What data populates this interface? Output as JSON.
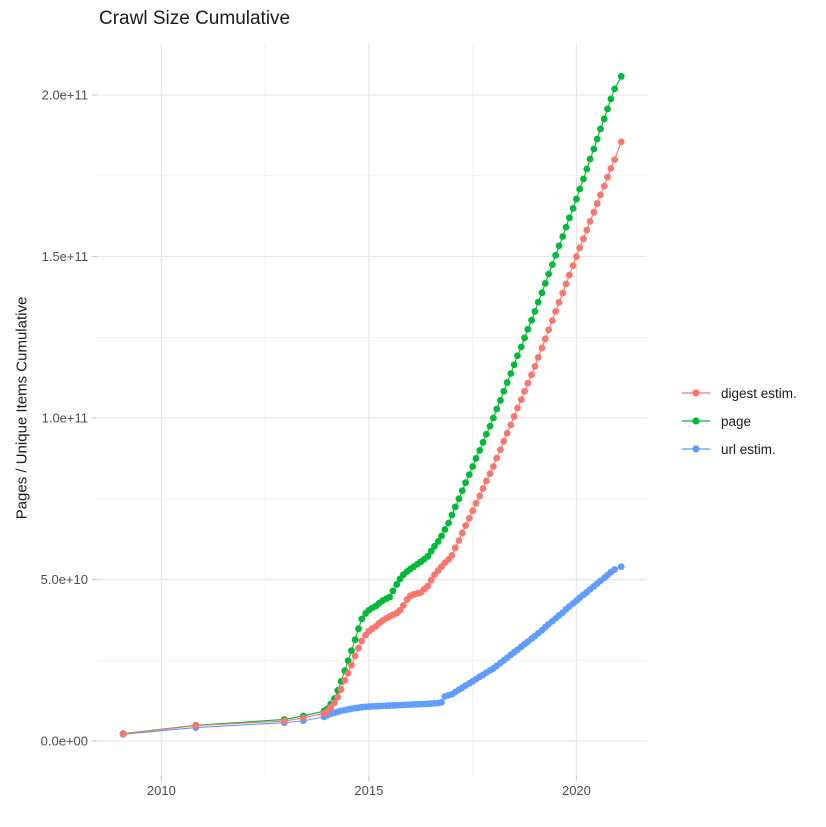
{
  "title": "Crawl Size Cumulative",
  "y_axis_title": "Pages / Unique Items Cumulative",
  "legend": {
    "items": [
      {
        "label": "digest estim.",
        "color": "#F8766D"
      },
      {
        "label": "page",
        "color": "#00BA38"
      },
      {
        "label": "url estim.",
        "color": "#619CFF"
      }
    ]
  },
  "chart_data": {
    "type": "scatter-line",
    "title": "Crawl Size Cumulative",
    "xlabel": "",
    "ylabel": "Pages / Unique Items Cumulative",
    "value_unit": "items, stored as billions (multiply by 1e9)",
    "x_range": [
      2008.45,
      2021.7
    ],
    "y_range": [
      -10.8,
      215.8
    ],
    "x_breaks": [
      2010,
      2015,
      2020
    ],
    "x_tick_labels": [
      "2010",
      "2015",
      "2020"
    ],
    "x_minor_breaks": [
      2012.5,
      2017.5
    ],
    "y_breaks": [
      0,
      50,
      100,
      150,
      200
    ],
    "y_tick_labels": [
      "0.0e+00",
      "5.0e+10",
      "1.0e+11",
      "1.5e+11",
      "2.0e+11"
    ],
    "y_minor_breaks": [
      25,
      75,
      125,
      175
    ],
    "grid": "major+minor",
    "legend_position": "right",
    "render_order": [
      2,
      1,
      0
    ],
    "series": [
      {
        "name": "digest estim.",
        "color": "#F8766D",
        "points": [
          [
            2009.08,
            2.2
          ],
          [
            2010.83,
            4.8
          ],
          [
            2012.96,
            6.2
          ],
          [
            2013.42,
            7.2
          ],
          [
            2013.92,
            8.6
          ],
          [
            2014.0,
            9.2
          ],
          [
            2014.08,
            10.4
          ],
          [
            2014.17,
            11.8
          ],
          [
            2014.25,
            13.6
          ],
          [
            2014.33,
            16.0
          ],
          [
            2014.42,
            18.8
          ],
          [
            2014.5,
            21.0
          ],
          [
            2014.58,
            23.5
          ],
          [
            2014.67,
            26.3
          ],
          [
            2014.75,
            28.8
          ],
          [
            2014.83,
            31.0
          ],
          [
            2014.92,
            32.8
          ],
          [
            2015.0,
            34.0
          ],
          [
            2015.08,
            34.8
          ],
          [
            2015.17,
            35.5
          ],
          [
            2015.25,
            36.5
          ],
          [
            2015.33,
            37.3
          ],
          [
            2015.42,
            38.0
          ],
          [
            2015.5,
            38.6
          ],
          [
            2015.58,
            39.1
          ],
          [
            2015.67,
            39.6
          ],
          [
            2015.75,
            40.5
          ],
          [
            2015.83,
            42.0
          ],
          [
            2015.92,
            43.8
          ],
          [
            2016.0,
            45.0
          ],
          [
            2016.08,
            45.4
          ],
          [
            2016.17,
            45.7
          ],
          [
            2016.25,
            46.0
          ],
          [
            2016.33,
            47.0
          ],
          [
            2016.42,
            48.0
          ],
          [
            2016.5,
            49.8
          ],
          [
            2016.58,
            51.5
          ],
          [
            2016.67,
            52.8
          ],
          [
            2016.75,
            54.0
          ],
          [
            2016.83,
            55.2
          ],
          [
            2016.92,
            56.2
          ],
          [
            2017.0,
            57.5
          ],
          [
            2017.08,
            59.8
          ],
          [
            2017.17,
            62.1
          ],
          [
            2017.25,
            64.4
          ],
          [
            2017.33,
            66.7
          ],
          [
            2017.42,
            69.0
          ],
          [
            2017.5,
            71.3
          ],
          [
            2017.58,
            73.6
          ],
          [
            2017.67,
            75.9
          ],
          [
            2017.75,
            78.2
          ],
          [
            2017.83,
            80.5
          ],
          [
            2017.92,
            82.8
          ],
          [
            2018.0,
            85.0
          ],
          [
            2018.08,
            87.6
          ],
          [
            2018.17,
            90.2
          ],
          [
            2018.25,
            92.8
          ],
          [
            2018.33,
            95.3
          ],
          [
            2018.42,
            97.9
          ],
          [
            2018.5,
            100.5
          ],
          [
            2018.58,
            103.1
          ],
          [
            2018.67,
            105.7
          ],
          [
            2018.75,
            108.3
          ],
          [
            2018.83,
            110.8
          ],
          [
            2018.92,
            113.4
          ],
          [
            2019.0,
            116.0
          ],
          [
            2019.08,
            118.8
          ],
          [
            2019.17,
            121.7
          ],
          [
            2019.25,
            124.5
          ],
          [
            2019.33,
            127.3
          ],
          [
            2019.42,
            130.2
          ],
          [
            2019.5,
            133.0
          ],
          [
            2019.58,
            135.8
          ],
          [
            2019.67,
            138.7
          ],
          [
            2019.75,
            141.5
          ],
          [
            2019.83,
            144.3
          ],
          [
            2019.92,
            147.2
          ],
          [
            2020.0,
            150.0
          ],
          [
            2020.08,
            152.7
          ],
          [
            2020.17,
            155.5
          ],
          [
            2020.25,
            158.2
          ],
          [
            2020.33,
            160.9
          ],
          [
            2020.42,
            163.7
          ],
          [
            2020.5,
            166.4
          ],
          [
            2020.58,
            169.1
          ],
          [
            2020.67,
            171.8
          ],
          [
            2020.75,
            174.6
          ],
          [
            2020.83,
            177.3
          ],
          [
            2020.92,
            180.0
          ],
          [
            2021.08,
            185.5
          ]
        ]
      },
      {
        "name": "page",
        "color": "#00BA38",
        "points": [
          [
            2009.08,
            2.3
          ],
          [
            2010.83,
            4.9
          ],
          [
            2012.96,
            6.7
          ],
          [
            2013.42,
            7.8
          ],
          [
            2013.92,
            9.3
          ],
          [
            2014.0,
            10.0
          ],
          [
            2014.08,
            11.5
          ],
          [
            2014.17,
            13.2
          ],
          [
            2014.25,
            15.7
          ],
          [
            2014.33,
            18.5
          ],
          [
            2014.42,
            21.8
          ],
          [
            2014.5,
            24.9
          ],
          [
            2014.58,
            28.0
          ],
          [
            2014.67,
            31.4
          ],
          [
            2014.75,
            34.8
          ],
          [
            2014.83,
            37.8
          ],
          [
            2014.92,
            39.5
          ],
          [
            2015.0,
            40.5
          ],
          [
            2015.08,
            41.2
          ],
          [
            2015.17,
            41.8
          ],
          [
            2015.25,
            42.7
          ],
          [
            2015.33,
            43.5
          ],
          [
            2015.42,
            44.1
          ],
          [
            2015.5,
            44.6
          ],
          [
            2015.58,
            46.5
          ],
          [
            2015.67,
            48.5
          ],
          [
            2015.75,
            50.2
          ],
          [
            2015.83,
            51.5
          ],
          [
            2015.92,
            52.5
          ],
          [
            2016.0,
            53.3
          ],
          [
            2016.08,
            54.0
          ],
          [
            2016.17,
            54.8
          ],
          [
            2016.25,
            55.5
          ],
          [
            2016.33,
            56.3
          ],
          [
            2016.42,
            57.2
          ],
          [
            2016.5,
            58.8
          ],
          [
            2016.58,
            60.3
          ],
          [
            2016.67,
            61.8
          ],
          [
            2016.75,
            63.5
          ],
          [
            2016.83,
            65.5
          ],
          [
            2016.92,
            67.5
          ],
          [
            2017.0,
            70.0
          ],
          [
            2017.08,
            72.5
          ],
          [
            2017.17,
            75.0
          ],
          [
            2017.25,
            77.5
          ],
          [
            2017.33,
            80.0
          ],
          [
            2017.42,
            82.5
          ],
          [
            2017.5,
            85.0
          ],
          [
            2017.58,
            87.5
          ],
          [
            2017.67,
            90.0
          ],
          [
            2017.75,
            92.5
          ],
          [
            2017.83,
            95.0
          ],
          [
            2017.92,
            97.5
          ],
          [
            2018.0,
            100.0
          ],
          [
            2018.08,
            102.8
          ],
          [
            2018.17,
            105.5
          ],
          [
            2018.25,
            108.3
          ],
          [
            2018.33,
            111.0
          ],
          [
            2018.42,
            113.8
          ],
          [
            2018.5,
            116.5
          ],
          [
            2018.58,
            119.3
          ],
          [
            2018.67,
            122.0
          ],
          [
            2018.75,
            124.8
          ],
          [
            2018.83,
            127.5
          ],
          [
            2018.92,
            130.3
          ],
          [
            2019.0,
            133.0
          ],
          [
            2019.08,
            135.9
          ],
          [
            2019.17,
            138.8
          ],
          [
            2019.25,
            141.7
          ],
          [
            2019.33,
            144.6
          ],
          [
            2019.42,
            147.5
          ],
          [
            2019.5,
            150.4
          ],
          [
            2019.58,
            153.3
          ],
          [
            2019.67,
            156.2
          ],
          [
            2019.75,
            159.1
          ],
          [
            2019.83,
            162.0
          ],
          [
            2019.92,
            164.9
          ],
          [
            2020.0,
            167.8
          ],
          [
            2020.08,
            170.9
          ],
          [
            2020.17,
            174.0
          ],
          [
            2020.25,
            177.1
          ],
          [
            2020.33,
            180.2
          ],
          [
            2020.42,
            183.3
          ],
          [
            2020.5,
            186.4
          ],
          [
            2020.58,
            189.5
          ],
          [
            2020.67,
            192.6
          ],
          [
            2020.75,
            195.7
          ],
          [
            2020.83,
            198.8
          ],
          [
            2020.92,
            201.9
          ],
          [
            2021.08,
            205.8
          ]
        ]
      },
      {
        "name": "url estim.",
        "color": "#619CFF",
        "points": [
          [
            2009.08,
            2.1
          ],
          [
            2010.83,
            4.2
          ],
          [
            2012.96,
            5.7
          ],
          [
            2013.42,
            6.3
          ],
          [
            2013.92,
            7.5
          ],
          [
            2014.0,
            8.0
          ],
          [
            2014.08,
            8.4
          ],
          [
            2014.17,
            8.8
          ],
          [
            2014.25,
            9.1
          ],
          [
            2014.33,
            9.4
          ],
          [
            2014.42,
            9.6
          ],
          [
            2014.5,
            9.8
          ],
          [
            2014.58,
            10.0
          ],
          [
            2014.67,
            10.2
          ],
          [
            2014.75,
            10.35
          ],
          [
            2014.83,
            10.5
          ],
          [
            2014.92,
            10.6
          ],
          [
            2015.0,
            10.7
          ],
          [
            2015.08,
            10.75
          ],
          [
            2015.17,
            10.8
          ],
          [
            2015.25,
            10.85
          ],
          [
            2015.33,
            10.9
          ],
          [
            2015.42,
            10.95
          ],
          [
            2015.5,
            11.0
          ],
          [
            2015.58,
            11.05
          ],
          [
            2015.67,
            11.1
          ],
          [
            2015.75,
            11.15
          ],
          [
            2015.83,
            11.2
          ],
          [
            2015.92,
            11.25
          ],
          [
            2016.0,
            11.3
          ],
          [
            2016.08,
            11.35
          ],
          [
            2016.17,
            11.4
          ],
          [
            2016.25,
            11.45
          ],
          [
            2016.33,
            11.5
          ],
          [
            2016.42,
            11.55
          ],
          [
            2016.5,
            11.6
          ],
          [
            2016.58,
            11.7
          ],
          [
            2016.67,
            11.8
          ],
          [
            2016.75,
            12.0
          ],
          [
            2016.83,
            13.8
          ],
          [
            2016.92,
            14.2
          ],
          [
            2017.0,
            14.5
          ],
          [
            2017.08,
            15.2
          ],
          [
            2017.17,
            15.9
          ],
          [
            2017.25,
            16.5
          ],
          [
            2017.33,
            17.2
          ],
          [
            2017.42,
            17.9
          ],
          [
            2017.5,
            18.5
          ],
          [
            2017.58,
            19.2
          ],
          [
            2017.67,
            19.9
          ],
          [
            2017.75,
            20.5
          ],
          [
            2017.83,
            21.2
          ],
          [
            2017.92,
            21.9
          ],
          [
            2018.0,
            22.5
          ],
          [
            2018.08,
            23.3
          ],
          [
            2018.17,
            24.2
          ],
          [
            2018.25,
            25.0
          ],
          [
            2018.33,
            25.8
          ],
          [
            2018.42,
            26.7
          ],
          [
            2018.5,
            27.5
          ],
          [
            2018.58,
            28.3
          ],
          [
            2018.67,
            29.2
          ],
          [
            2018.75,
            30.0
          ],
          [
            2018.83,
            30.8
          ],
          [
            2018.92,
            31.7
          ],
          [
            2019.0,
            32.5
          ],
          [
            2019.08,
            33.4
          ],
          [
            2019.17,
            34.3
          ],
          [
            2019.25,
            35.3
          ],
          [
            2019.33,
            36.2
          ],
          [
            2019.42,
            37.1
          ],
          [
            2019.5,
            38.0
          ],
          [
            2019.58,
            38.9
          ],
          [
            2019.67,
            39.8
          ],
          [
            2019.75,
            40.8
          ],
          [
            2019.83,
            41.7
          ],
          [
            2019.92,
            42.6
          ],
          [
            2020.0,
            43.5
          ],
          [
            2020.08,
            44.4
          ],
          [
            2020.17,
            45.3
          ],
          [
            2020.25,
            46.1
          ],
          [
            2020.33,
            47.0
          ],
          [
            2020.42,
            47.9
          ],
          [
            2020.5,
            48.8
          ],
          [
            2020.58,
            49.6
          ],
          [
            2020.67,
            50.5
          ],
          [
            2020.75,
            51.4
          ],
          [
            2020.83,
            52.3
          ],
          [
            2020.92,
            53.1
          ],
          [
            2021.08,
            54.0
          ]
        ]
      }
    ]
  },
  "style": {
    "grid_major_color": "#e6e6e6",
    "grid_minor_color": "#f2f2f2",
    "tick_color": "#cccccc",
    "tick_label_color": "#4d4d4d"
  }
}
